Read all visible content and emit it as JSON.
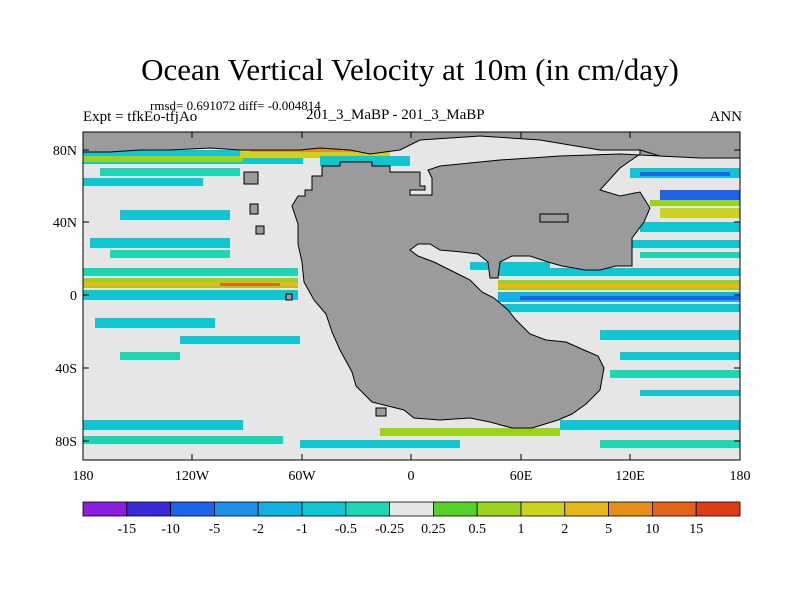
{
  "title": "Ocean Vertical Velocity at 10m (in cm/day)",
  "stats": "rmsd= 0.691072  diff= -0.004814",
  "left_label": "Expt = tfkEo-tfjAo",
  "center_label": "201_3_MaBP - 201_3_MaBP",
  "right_label": "ANN",
  "y_ticks": [
    "80N",
    "40N",
    "0",
    "40S",
    "80S"
  ],
  "x_ticks": [
    "180",
    "120W",
    "60W",
    "0",
    "60E",
    "120E",
    "180"
  ],
  "colorbar": {
    "labels": [
      "-15",
      "-10",
      "-5",
      "-2",
      "-1",
      "-0.5",
      "-0.25",
      "0.25",
      "0.5",
      "1",
      "2",
      "5",
      "10",
      "15"
    ],
    "colors": [
      "#8c1ee0",
      "#3a2bd8",
      "#1f63e6",
      "#1e90e8",
      "#12b2e0",
      "#10c6d2",
      "#1ed6b4",
      "#e6e6e6",
      "#55d22a",
      "#9bd21e",
      "#cdd21e",
      "#e6b81a",
      "#e6901a",
      "#e6641a",
      "#e03c1a"
    ]
  },
  "colors": {
    "land": "#9b9b9b",
    "ocean": "#e6e6e6"
  }
}
